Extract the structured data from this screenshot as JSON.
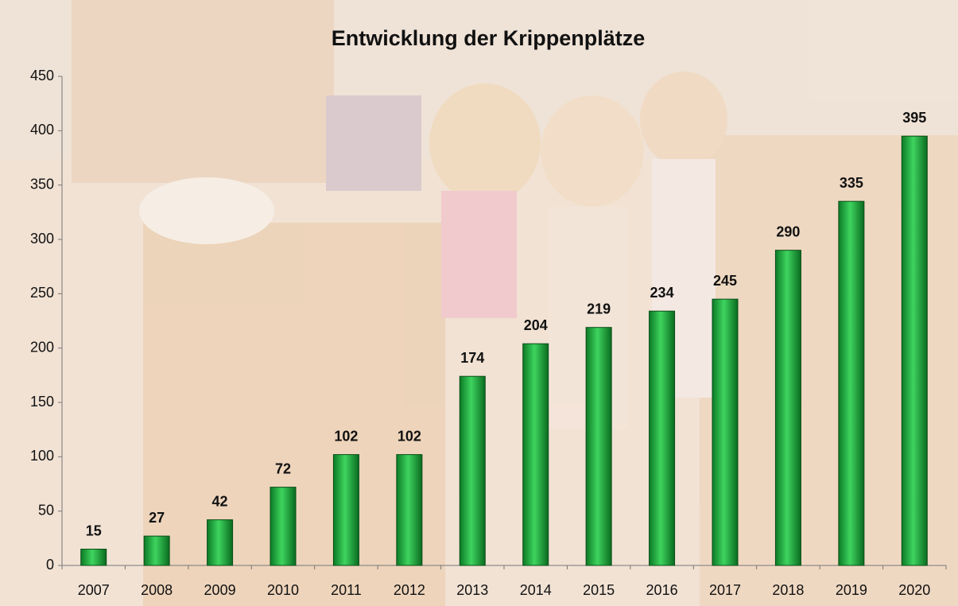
{
  "chart_data": {
    "type": "bar",
    "title": "Entwicklung der Krippenplätze",
    "categories": [
      "2007",
      "2008",
      "2009",
      "2010",
      "2011",
      "2012",
      "2013",
      "2014",
      "2015",
      "2016",
      "2017",
      "2018",
      "2019",
      "2020"
    ],
    "values": [
      15,
      27,
      42,
      72,
      102,
      102,
      174,
      204,
      219,
      234,
      245,
      290,
      335,
      395
    ],
    "color": "#1aa83a",
    "ylim": [
      0,
      450
    ],
    "yticks": [
      0,
      50,
      100,
      150,
      200,
      250,
      300,
      350,
      400,
      450
    ],
    "grid": false
  }
}
